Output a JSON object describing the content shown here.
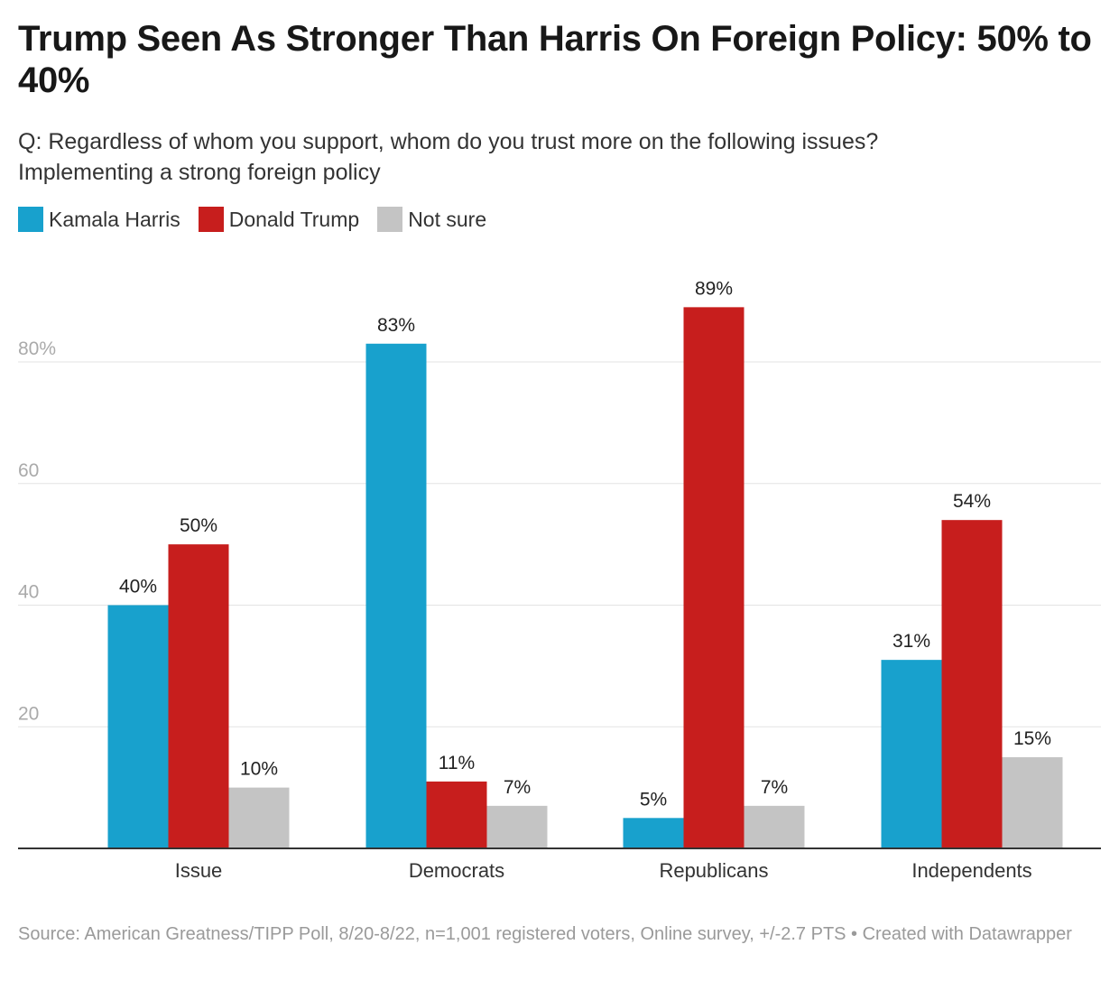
{
  "header": {
    "title": "Trump Seen As Stronger Than Harris On Foreign Policy: 50% to 40%",
    "subtitle_lines": [
      "Q: Regardless of whom you support, whom do you trust more on the following issues?",
      "Implementing a strong foreign policy"
    ]
  },
  "legend": [
    {
      "label": "Kamala Harris",
      "color": "#18a1cd"
    },
    {
      "label": "Donald Trump",
      "color": "#c71e1d"
    },
    {
      "label": "Not sure",
      "color": "#c4c4c4"
    }
  ],
  "footer": {
    "source": "Source: American Greatness/TIPP Poll, 8/20-8/22, n=1,001 registered voters, Online survey, +/-2.7 PTS • Created with Datawrapper"
  },
  "chart_data": {
    "type": "bar",
    "title": "Trump Seen As Stronger Than Harris On Foreign Policy: 50% to 40%",
    "xlabel": "",
    "ylabel": "",
    "categories": [
      "Issue",
      "Democrats",
      "Republicans",
      "Independents"
    ],
    "series": [
      {
        "name": "Kamala Harris",
        "color": "#18a1cd",
        "values": [
          40,
          83,
          5,
          31
        ]
      },
      {
        "name": "Donald Trump",
        "color": "#c71e1d",
        "values": [
          50,
          11,
          89,
          54
        ]
      },
      {
        "name": "Not sure",
        "color": "#c4c4c4",
        "values": [
          10,
          7,
          7,
          15
        ]
      }
    ],
    "value_labels": [
      [
        "40%",
        "83%",
        "5%",
        "31%"
      ],
      [
        "50%",
        "11%",
        "89%",
        "54%"
      ],
      [
        "10%",
        "7%",
        "7%",
        "15%"
      ]
    ],
    "ylim": [
      0,
      80
    ],
    "yticks": [
      20,
      40,
      60,
      80
    ],
    "ytick_labels": [
      "20",
      "40",
      "60",
      "80%"
    ],
    "grid": true,
    "legend_position": "top-left"
  }
}
